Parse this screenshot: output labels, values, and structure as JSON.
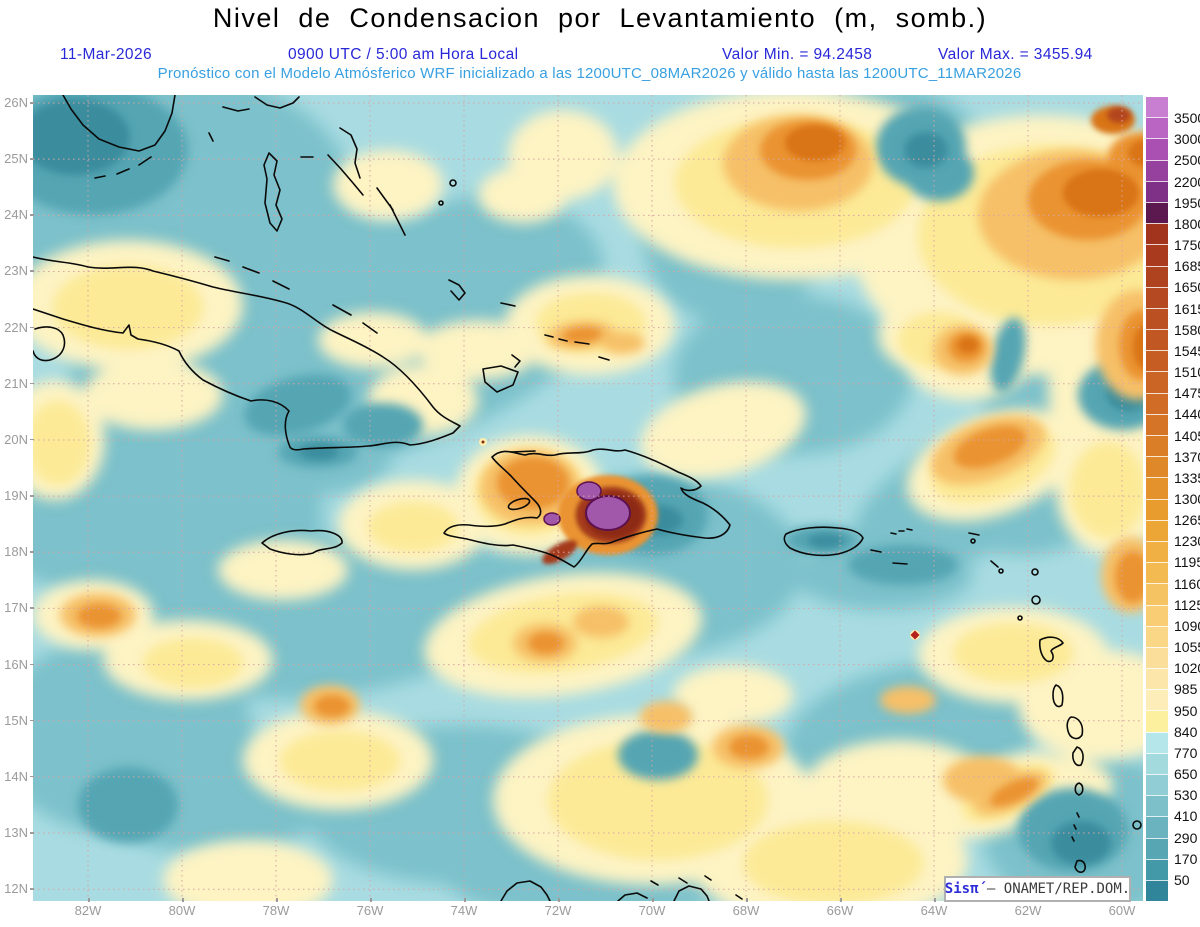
{
  "header": {
    "title": "Nivel de Condensacion por Levantamiento (m, somb.)",
    "date": "11-Mar-2026",
    "time_line": "0900 UTC / 5:00 am Hora Local",
    "valor_min": "Valor Min. = 94.2458",
    "valor_max": "Valor Max. = 3455.94",
    "forecast_line": "Pronóstico con el Modelo Atmósferico WRF inicializado a las 1200UTC_08MAR2026 y válido hasta las  1200UTC_11MAR2026"
  },
  "axes": {
    "lat_labels": [
      "26N",
      "25N",
      "24N",
      "23N",
      "22N",
      "21N",
      "20N",
      "19N",
      "18N",
      "17N",
      "16N",
      "15N",
      "14N",
      "13N",
      "12N"
    ],
    "lon_labels": [
      "82W",
      "80W",
      "78W",
      "76W",
      "74W",
      "72W",
      "70W",
      "68W",
      "66W",
      "64W",
      "62W",
      "60W"
    ]
  },
  "colorbar": {
    "levels": [
      "3500",
      "3000",
      "2500",
      "2200",
      "1950",
      "1800",
      "1750",
      "1685",
      "1650",
      "1615",
      "1580",
      "1545",
      "1510",
      "1475",
      "1440",
      "1405",
      "1370",
      "1335",
      "1300",
      "1265",
      "1230",
      "1195",
      "1160",
      "1125",
      "1090",
      "1055",
      "1020",
      "985",
      "950",
      "840",
      "770",
      "650",
      "530",
      "410",
      "290",
      "170",
      "50"
    ],
    "segment_colors": [
      "#c97fd1",
      "#ba64c4",
      "#a950b2",
      "#97419e",
      "#7f3087",
      "#5c1950",
      "#a2331d",
      "#a93a1e",
      "#af421f",
      "#b54921",
      "#bb5022",
      "#c15723",
      "#c65e24",
      "#cb6525",
      "#d06c26",
      "#d57427",
      "#da7e28",
      "#df8829",
      "#e4922b",
      "#e89c2e",
      "#eca636",
      "#f0b043",
      "#f3ba52",
      "#f6c362",
      "#f8cd74",
      "#fad687",
      "#fbde99",
      "#fce6aa",
      "#fdedb9",
      "#fcf09e",
      "#b5e6ea",
      "#a3dade",
      "#90cdd5",
      "#7dc0ca",
      "#6ab3bf",
      "#57a6b4",
      "#4499a9",
      "#31859a"
    ]
  },
  "branding": {
    "app": "Sisπ́",
    "org": " – ONAMET/REP.DOM."
  },
  "colors": {
    "header_blue": "#2828d8",
    "header_cyan": "#38a0e0",
    "axis_gray": "#9b9b9b",
    "grid_pink": "#d8a4a4",
    "ocean_base": "#a9dce2",
    "coastline": "#0a0a0a",
    "max_spot_purple": "#a158ab"
  }
}
